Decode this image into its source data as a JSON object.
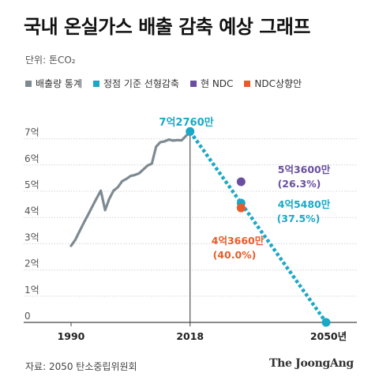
{
  "title": "국내 온실가스 배출 감축 예상 그래프",
  "unit_label": "단위: 톤CO₂",
  "legend": [
    {
      "label": "배출량 통계",
      "color": "#7d8a92"
    },
    {
      "label": "정점 기준 선형감축",
      "color": "#1aa8c6"
    },
    {
      "label": "현 NDC",
      "color": "#6a4fa0"
    },
    {
      "label": "NDC상향안",
      "color": "#e85b2a"
    }
  ],
  "chart_data": {
    "type": "line",
    "x_ticks": [
      "1990",
      "2018",
      "2050년"
    ],
    "y_ticks": [
      "0",
      "1억",
      "2억",
      "3억",
      "4억",
      "5억",
      "6억",
      "7억"
    ],
    "ylim": [
      0,
      7.276
    ],
    "xlim": [
      1990,
      2050
    ],
    "series": [
      {
        "name": "배출량 통계",
        "x": [
          1990,
          1991,
          1992,
          1993,
          1994,
          1995,
          1996,
          1997,
          1998,
          1999,
          2000,
          2001,
          2002,
          2003,
          2004,
          2005,
          2006,
          2007,
          2008,
          2009,
          2010,
          2011,
          2012,
          2013,
          2014,
          2015,
          2016,
          2017,
          2018
        ],
        "y": [
          2.92,
          3.15,
          3.48,
          3.8,
          4.1,
          4.42,
          4.73,
          5.02,
          4.28,
          4.71,
          5.02,
          5.15,
          5.38,
          5.47,
          5.58,
          5.62,
          5.68,
          5.83,
          5.98,
          6.05,
          6.7,
          6.87,
          6.9,
          6.97,
          6.93,
          6.95,
          6.94,
          7.1,
          7.276
        ]
      },
      {
        "name": "정점 기준 선형감축",
        "x": [
          2018,
          2050
        ],
        "y": [
          7.276,
          0
        ]
      }
    ],
    "points": [
      {
        "name": "현 NDC",
        "x": 2030,
        "y": 5.36
      },
      {
        "name": "NDC상향안",
        "x": 2030,
        "y": 4.366
      }
    ],
    "annotations": [
      {
        "label": "7억2760만"
      },
      {
        "label": "5억3600만",
        "sub": "(26.3%)"
      },
      {
        "label": "4억5480만",
        "sub": "(37.5%)"
      },
      {
        "label": "4억3660만",
        "sub": "(40.0%)"
      }
    ],
    "grid": true
  },
  "source": "자료: 2050 탄소중립위원회",
  "logo": "The JoongAng"
}
